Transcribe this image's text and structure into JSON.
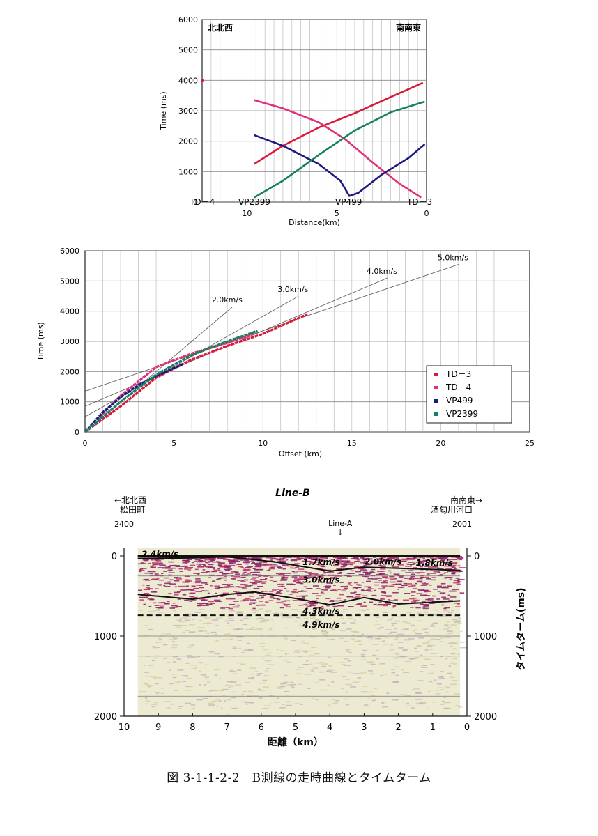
{
  "caption": "図 3-1-1-2-2　B測線の走時曲線とタイムターム",
  "chart_data": [
    {
      "type": "line",
      "ylabel": "Time (ms)",
      "xlabel": "Distance(km)",
      "xlim": [
        12.5,
        0
      ],
      "ylim": [
        0,
        6000
      ],
      "x_ticks": [
        10,
        5,
        0
      ],
      "y_ticks": [
        0,
        1000,
        2000,
        3000,
        4000,
        5000,
        6000
      ],
      "grid": true,
      "corner_labels": {
        "left": "北北西",
        "right": "南南東"
      },
      "source_labels": [
        "TD－4",
        "VP2399",
        "VP499",
        "TD－3"
      ],
      "series": [
        {
          "name": "TD－3",
          "color": "#d81b3c",
          "x": [
            9.6,
            8,
            6,
            4,
            2,
            0.2
          ],
          "y": [
            1250,
            1850,
            2450,
            2920,
            3450,
            3920
          ]
        },
        {
          "name": "TD－4",
          "color": "#e0307a",
          "x": [
            9.6,
            8,
            6,
            4.5,
            3,
            1.5,
            0.3
          ],
          "y": [
            3350,
            3080,
            2620,
            2050,
            1300,
            600,
            150
          ]
        },
        {
          "name": "VP499",
          "color": "#1a1a80",
          "x": [
            9.6,
            8,
            6,
            4.8,
            4.3,
            3.8,
            2.5,
            1,
            0.1
          ],
          "y": [
            2200,
            1850,
            1250,
            700,
            200,
            300,
            900,
            1450,
            1900
          ]
        },
        {
          "name": "VP2399",
          "color": "#148060",
          "x": [
            9.6,
            8,
            6,
            4,
            2,
            0.1
          ],
          "y": [
            150,
            700,
            1550,
            2350,
            2950,
            3300
          ]
        }
      ]
    },
    {
      "type": "scatter",
      "ylabel": "Time (ms)",
      "xlabel": "Offset (km)",
      "xlim": [
        0,
        25
      ],
      "ylim": [
        0,
        6000
      ],
      "x_ticks": [
        0,
        5,
        10,
        15,
        20,
        25
      ],
      "y_ticks": [
        0,
        1000,
        2000,
        3000,
        4000,
        5000,
        6000
      ],
      "grid": true,
      "legend_position": "bottom-right",
      "velocity_lines": [
        {
          "label": "2.0km/s",
          "intercept": 0,
          "slope": 500,
          "x_end": 8.3
        },
        {
          "label": "3.0km/s",
          "intercept": 500,
          "slope": 333,
          "x_end": 12.0
        },
        {
          "label": "4.0km/s",
          "intercept": 850,
          "slope": 250,
          "x_end": 17.0
        },
        {
          "label": "5.0km/s",
          "intercept": 1350,
          "slope": 200,
          "x_end": 21.0
        }
      ],
      "series": [
        {
          "name": "TD－3",
          "color": "#d81b3c",
          "x": [
            0,
            2,
            4,
            6,
            8,
            10,
            12.5
          ],
          "y": [
            0,
            850,
            1800,
            2400,
            2850,
            3250,
            3900
          ]
        },
        {
          "name": "TD－4",
          "color": "#e0307a",
          "x": [
            0,
            2,
            4,
            6,
            8,
            9.5
          ],
          "y": [
            0,
            1200,
            2150,
            2600,
            2950,
            3250
          ]
        },
        {
          "name": "VP499",
          "color": "#1a1a80",
          "x": [
            0,
            1,
            2,
            3,
            4,
            5.5
          ],
          "y": [
            0,
            650,
            1150,
            1550,
            1850,
            2250
          ]
        },
        {
          "name": "VP2399",
          "color": "#148060",
          "x": [
            0,
            2,
            4,
            6,
            8,
            9.7
          ],
          "y": [
            0,
            1000,
            1900,
            2550,
            3000,
            3350
          ]
        }
      ]
    },
    {
      "type": "heatmap",
      "title": "Line-B",
      "xlabel": "距離（km）",
      "ylabel": "タイムターム(ms)",
      "xlim": [
        10,
        0
      ],
      "ylim": [
        2000,
        0
      ],
      "x_ticks": [
        10,
        9,
        8,
        7,
        6,
        5,
        4,
        3,
        2,
        1,
        0
      ],
      "y_ticks": [
        0,
        1000,
        2000
      ],
      "left_header": [
        "←北北西",
        "松田町"
      ],
      "right_header": [
        "南南東→",
        "酒匂川河口"
      ],
      "left_station": "2400",
      "right_station": "2001",
      "marker": {
        "label": "Line-A",
        "arrow": "↓",
        "x": 4
      },
      "velocity_labels": [
        "2.4km/s",
        "1.7km/s",
        "2.0km/s",
        "1.8km/s",
        "3.0km/s",
        "4.3km/s",
        "4.9km/s"
      ],
      "boundaries": [
        {
          "kind": "solid",
          "x": [
            9.6,
            8,
            7,
            5.5,
            4,
            3,
            0.2
          ],
          "y": [
            30,
            25,
            10,
            80,
            190,
            140,
            180
          ]
        },
        {
          "kind": "solid",
          "x": [
            9.6,
            8,
            7,
            6.2,
            5,
            4,
            3,
            2,
            0.2
          ],
          "y": [
            480,
            540,
            480,
            450,
            530,
            610,
            520,
            600,
            560
          ]
        },
        {
          "kind": "dashed",
          "x": [
            9.6,
            0.2
          ],
          "y": [
            740,
            740
          ]
        }
      ]
    }
  ]
}
